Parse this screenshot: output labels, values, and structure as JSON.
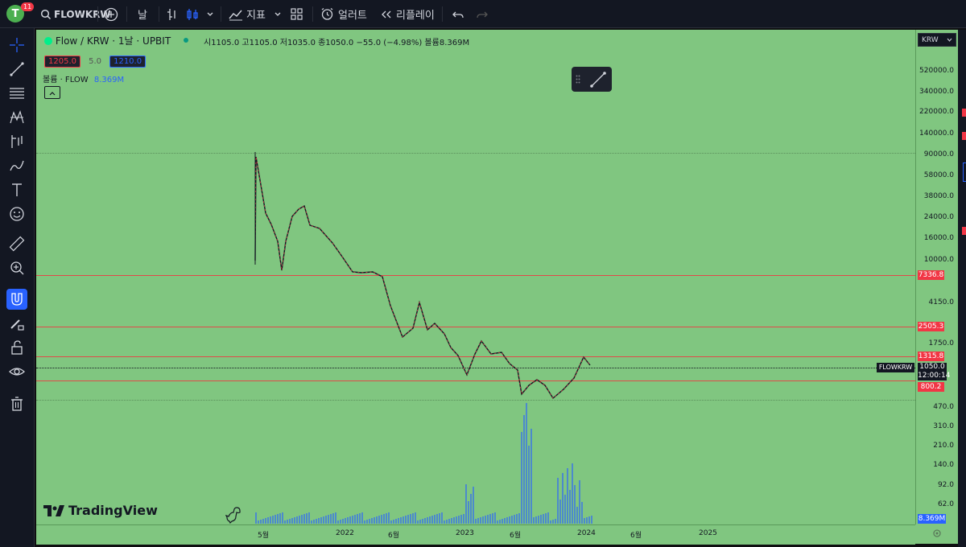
{
  "topbar": {
    "avatar_letter": "T",
    "notification_count": "11",
    "symbol": "FLOWKRW",
    "interval": "날",
    "indicators_label": "지표",
    "alerts_label": "얼러트",
    "replay_label": "리플레이"
  },
  "legend": {
    "title": "Flow / KRW · 1날 · UPBIT",
    "ohlc_text": "시1105.0 고1105.0 저1035.0 종1050.0 −55.0 (−4.98%) 볼륨8.369M",
    "bid": "1205.0",
    "spread": "5.0",
    "ask": "1210.0",
    "volume_label": "볼륨 · FLOW",
    "volume_value": "8.369M"
  },
  "price_axis": {
    "currency": "KRW",
    "labels": [
      "520000.0",
      "340000.0",
      "220000.0",
      "140000.0",
      "90000.0",
      "58000.0",
      "38000.0",
      "24000.0",
      "16000.0",
      "10000.0",
      "4150.0",
      "1750.0",
      "470.0",
      "310.0",
      "210.0",
      "140.0",
      "92.0",
      "62.0"
    ],
    "current_symbol": "FLOWKRW",
    "current_price": "1050.0",
    "countdown": "12:00:14",
    "volume_tag": "8.369M"
  },
  "levels": [
    "7336.8",
    "2505.3",
    "1315.8",
    "800.2"
  ],
  "time_axis": [
    "5월",
    "2022",
    "6월",
    "2023",
    "6월",
    "2024",
    "6월",
    "2025"
  ],
  "watermark": "TradingView",
  "colors": {
    "chart_bg": "#80c680",
    "level_line": "#e04a4a",
    "up": "#131722",
    "down": "#f23645"
  }
}
